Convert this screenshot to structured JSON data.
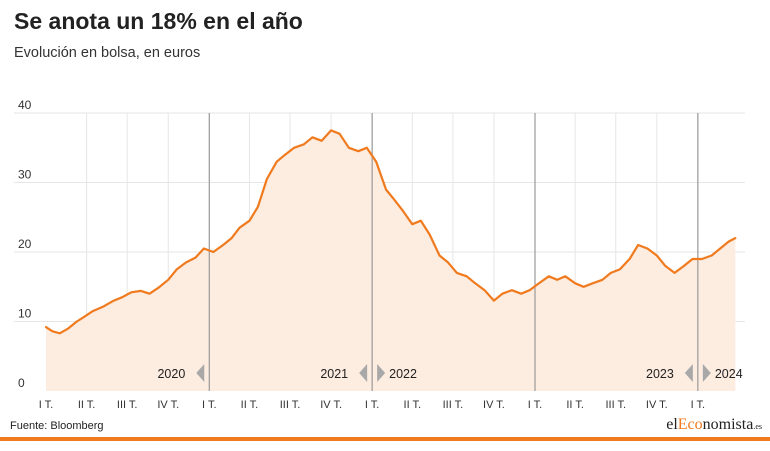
{
  "header": {
    "title": "Se anota un 18% en el año",
    "subtitle": "Evolución en bolsa, en euros"
  },
  "footer": {
    "source": "Fuente: Bloomberg",
    "brand_prefix": "el",
    "brand_accent": "Eco",
    "brand_suffix": "nomista",
    "brand_domain": ".es"
  },
  "colors": {
    "line": "#f07a1e",
    "area": "#fdece0",
    "grid": "#e6e6e6",
    "year_divider": "#9a9a9a",
    "arrow": "#a8a8a8",
    "accent": "#f07a1e"
  },
  "chart_data": {
    "type": "area",
    "title": "Se anota un 18% en el año",
    "subtitle": "Evolución en bolsa, en euros",
    "xlabel": "",
    "ylabel": "",
    "ylim": [
      0,
      40
    ],
    "y_ticks": [
      0,
      10,
      20,
      30,
      40
    ],
    "grid": true,
    "legend": "none",
    "x_start": "2020-01-01",
    "x_end": "2024-03-31",
    "quarter_labels": [
      "I T.",
      "II T.",
      "III T.",
      "IV T.",
      "I T.",
      "II T.",
      "III T.",
      "IV T.",
      "I T.",
      "II T.",
      "III T.",
      "IV T.",
      "I T.",
      "II T.",
      "III T.",
      "IV T.",
      "I T."
    ],
    "year_markers": [
      {
        "date": "2021-01-01",
        "left_label": "2020",
        "right_label": ""
      },
      {
        "date": "2022-01-01",
        "left_label": "2021",
        "right_label": "2022"
      },
      {
        "date": "2024-01-01",
        "left_label": "2023",
        "right_label": "2024"
      }
    ],
    "extra_dividers": [
      "2023-01-01"
    ],
    "series": [
      {
        "x": [
          "2020-01-01",
          "2020-01-15",
          "2020-02-01",
          "2020-02-20",
          "2020-03-10",
          "2020-03-25",
          "2020-04-15",
          "2020-05-10",
          "2020-06-01",
          "2020-06-20",
          "2020-07-10",
          "2020-08-01",
          "2020-08-20",
          "2020-09-10",
          "2020-10-01",
          "2020-10-20",
          "2020-11-10",
          "2020-12-01",
          "2020-12-20",
          "2021-01-10",
          "2021-02-01",
          "2021-02-20",
          "2021-03-10",
          "2021-04-01",
          "2021-04-20",
          "2021-05-10",
          "2021-06-01",
          "2021-06-20",
          "2021-07-10",
          "2021-08-01",
          "2021-08-20",
          "2021-09-10",
          "2021-10-01",
          "2021-10-20",
          "2021-11-10",
          "2021-12-01",
          "2021-12-20",
          "2022-01-10",
          "2022-02-01",
          "2022-02-20",
          "2022-03-10",
          "2022-04-01",
          "2022-04-20",
          "2022-05-10",
          "2022-06-01",
          "2022-06-20",
          "2022-07-10",
          "2022-08-01",
          "2022-08-20",
          "2022-09-10",
          "2022-10-01",
          "2022-10-20",
          "2022-11-10",
          "2022-12-01",
          "2022-12-20",
          "2023-01-10",
          "2023-02-01",
          "2023-02-20",
          "2023-03-10",
          "2023-04-01",
          "2023-04-20",
          "2023-05-10",
          "2023-06-01",
          "2023-06-20",
          "2023-07-10",
          "2023-08-01",
          "2023-08-20",
          "2023-09-10",
          "2023-10-01",
          "2023-10-20",
          "2023-11-10",
          "2023-12-01",
          "2023-12-20",
          "2024-01-10",
          "2024-02-01",
          "2024-02-20",
          "2024-03-10",
          "2024-03-25"
        ],
        "values": [
          9.2,
          8.6,
          8.3,
          9.0,
          10.0,
          10.6,
          11.5,
          12.2,
          13.0,
          13.5,
          14.2,
          14.4,
          14.0,
          14.9,
          16.0,
          17.5,
          18.5,
          19.2,
          20.5,
          20.0,
          21.0,
          22.0,
          23.5,
          24.5,
          26.5,
          30.5,
          33.0,
          34.0,
          35.0,
          35.5,
          36.5,
          36.0,
          37.5,
          37.0,
          35.0,
          34.5,
          35.0,
          33.0,
          29.0,
          27.5,
          26.0,
          24.0,
          24.5,
          22.5,
          19.5,
          18.5,
          17.0,
          16.5,
          15.5,
          14.5,
          13.0,
          14.0,
          14.5,
          14.0,
          14.5,
          15.5,
          16.5,
          16.0,
          16.5,
          15.5,
          15.0,
          15.5,
          16.0,
          17.0,
          17.5,
          19.0,
          21.0,
          20.5,
          19.5,
          18.0,
          17.0,
          18.0,
          19.0,
          19.0,
          19.5,
          20.5,
          21.5,
          22.0
        ]
      }
    ]
  }
}
